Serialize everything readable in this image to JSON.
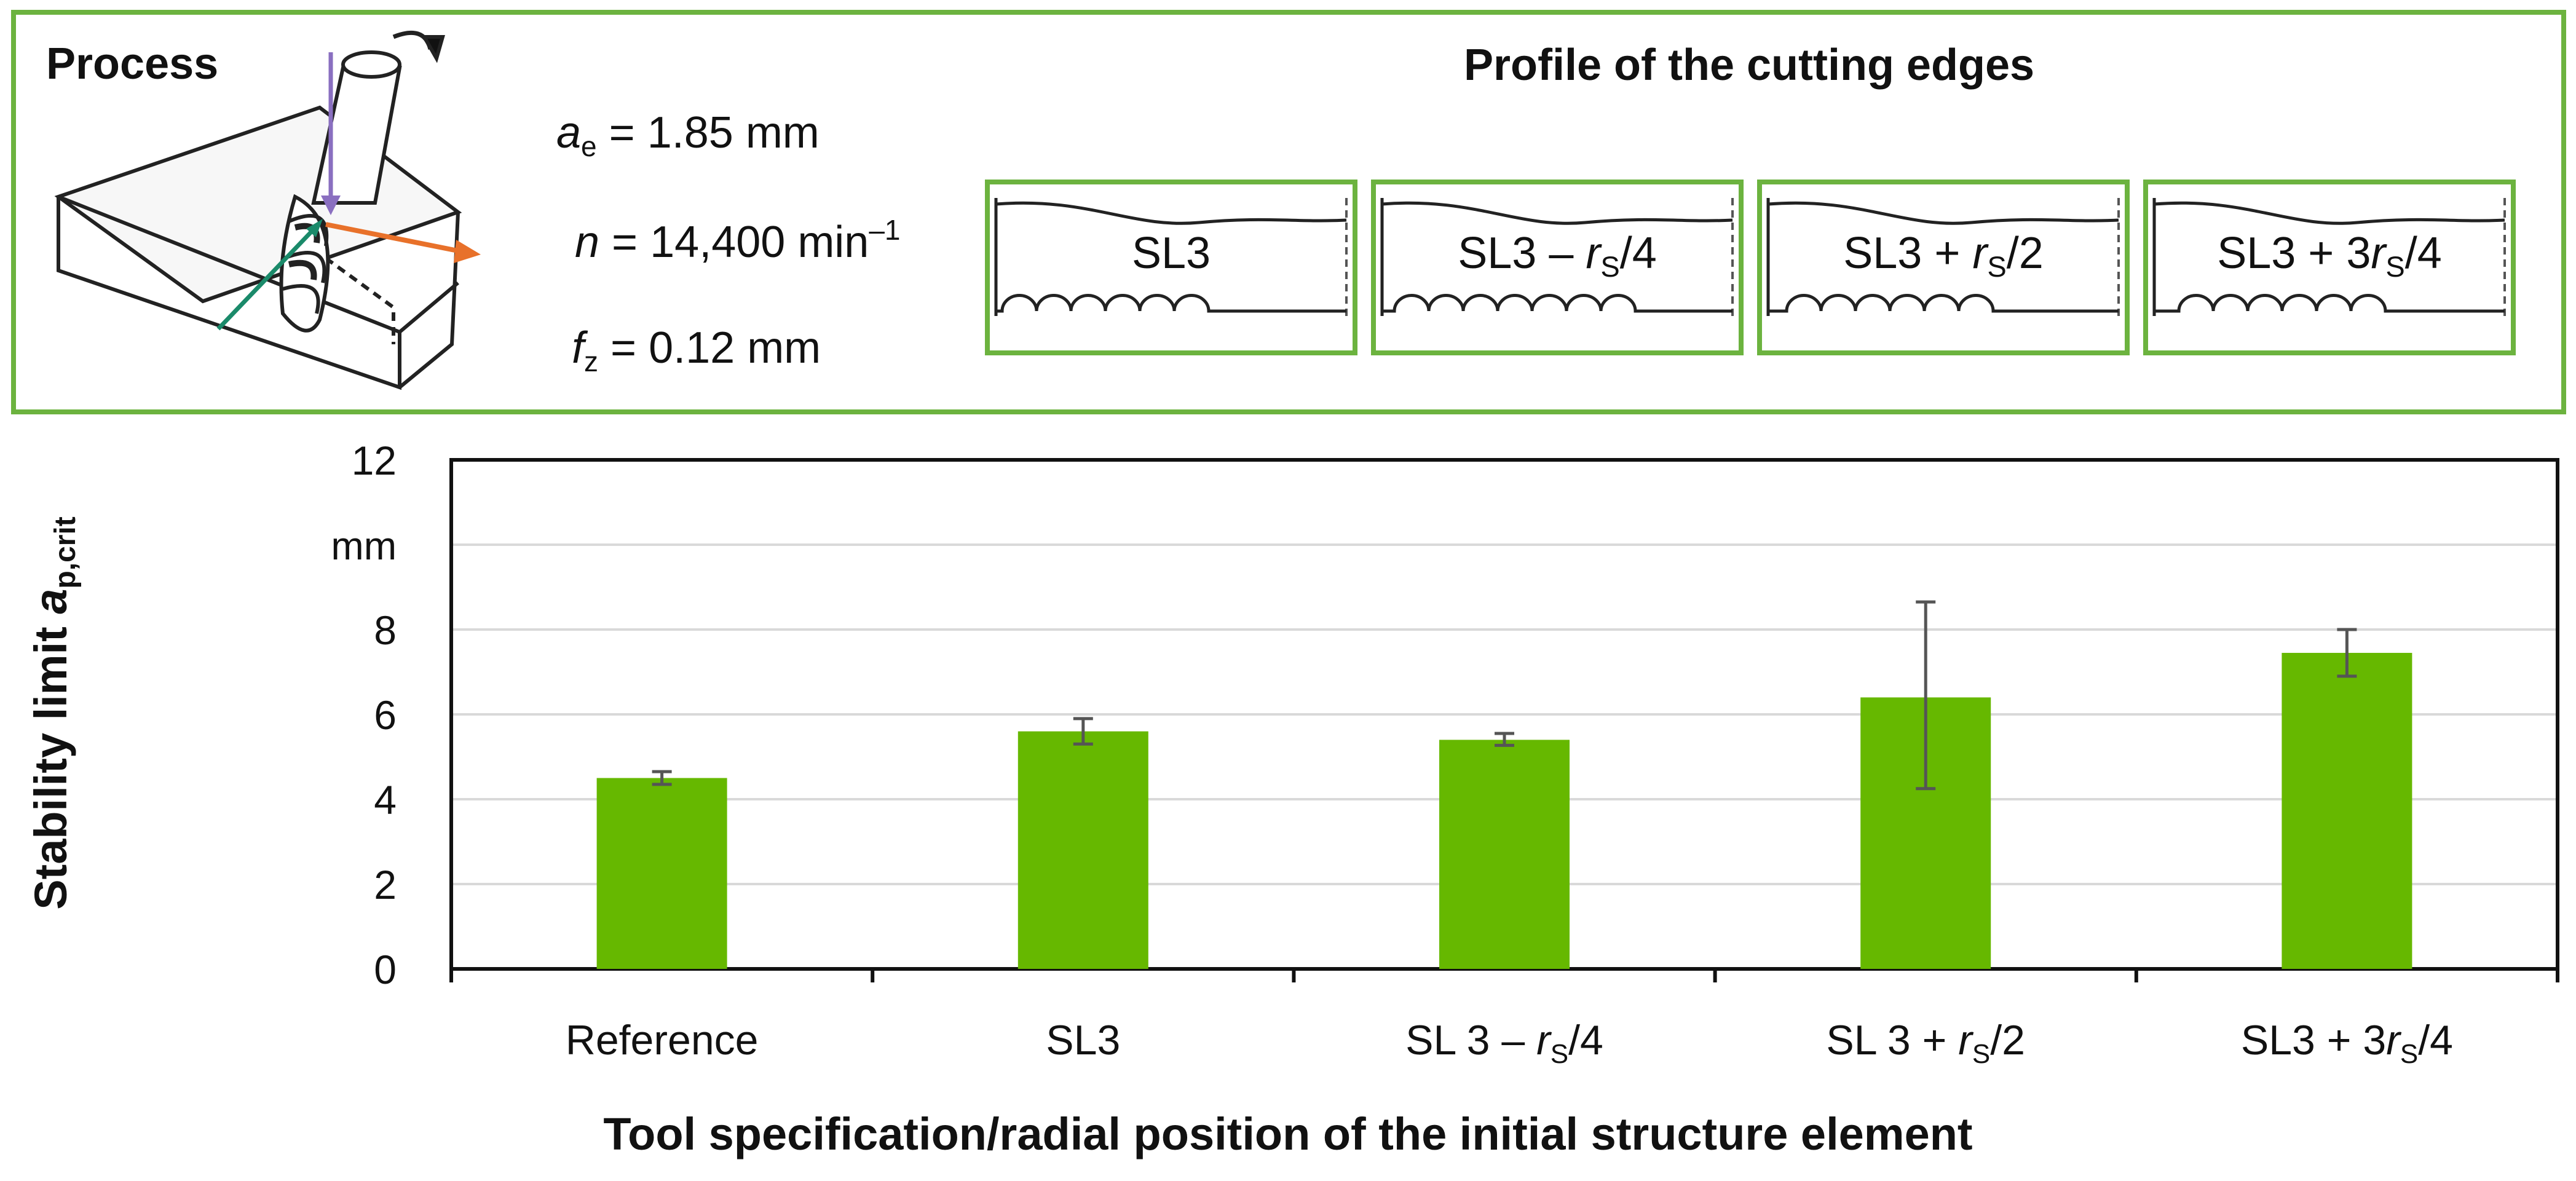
{
  "process_panel": {
    "process_label": "Process",
    "params": {
      "ae": {
        "symbol": "a",
        "sub": "e",
        "text": " = 1.85 mm"
      },
      "n": {
        "symbol": "n",
        "text": " = 14,400 min",
        "sup": "–1"
      },
      "fz": {
        "symbol": "f",
        "sub": "z",
        "text": " = 0.12 mm"
      }
    },
    "profile_title": "Profile of the cutting edges",
    "profiles": [
      {
        "base": "SL3",
        "sym": "",
        "sub": "",
        "tail": "",
        "scallops": 6,
        "offset": 0.0
      },
      {
        "base": "SL3 – ",
        "sym": "r",
        "sub": "S",
        "tail": "/4",
        "scallops": 7,
        "offset": 0.25
      },
      {
        "base": "SL3 + ",
        "sym": "r",
        "sub": "S",
        "tail": "/2",
        "scallops": 6,
        "offset": 0.5
      },
      {
        "base": "SL3 + 3",
        "sym": "r",
        "sub": "S",
        "tail": "/4",
        "scallops": 6,
        "offset": 0.75
      }
    ],
    "arrow_colors": {
      "feed": "#8a6fc0",
      "normal": "#1a8a6a",
      "cut": "#e8712a"
    }
  },
  "chart_data": {
    "type": "bar",
    "categories": [
      "Reference",
      "SL3",
      "SL 3 – rS/4",
      "SL 3 + rS/2",
      "SL3 + 3rS/4"
    ],
    "category_labels": [
      {
        "base": "Reference",
        "sym": "",
        "sub": "",
        "tail": ""
      },
      {
        "base": "SL3",
        "sym": "",
        "sub": "",
        "tail": ""
      },
      {
        "base": "SL 3 – ",
        "sym": "r",
        "sub": "S",
        "tail": "/4"
      },
      {
        "base": "SL 3 + ",
        "sym": "r",
        "sub": "S",
        "tail": "/2"
      },
      {
        "base": "SL3 + 3",
        "sym": "r",
        "sub": "S",
        "tail": "/4"
      }
    ],
    "values": [
      4.5,
      5.6,
      5.4,
      6.4,
      7.45
    ],
    "error_low": [
      4.35,
      5.3,
      5.27,
      4.25,
      6.9
    ],
    "error_high": [
      4.65,
      5.9,
      5.55,
      8.65,
      8.0
    ],
    "ylim": [
      0,
      12
    ],
    "yticks": [
      0,
      2,
      4,
      6,
      8,
      12
    ],
    "y_unit": "mm",
    "ylabel": {
      "text": "Stability limit ",
      "sym": "a",
      "sub": "p,crit"
    },
    "xlabel": "Tool specification/radial position of the initial structure element",
    "grid": true,
    "bar_color": "#66b800",
    "frame_color": "#6cb33f"
  }
}
